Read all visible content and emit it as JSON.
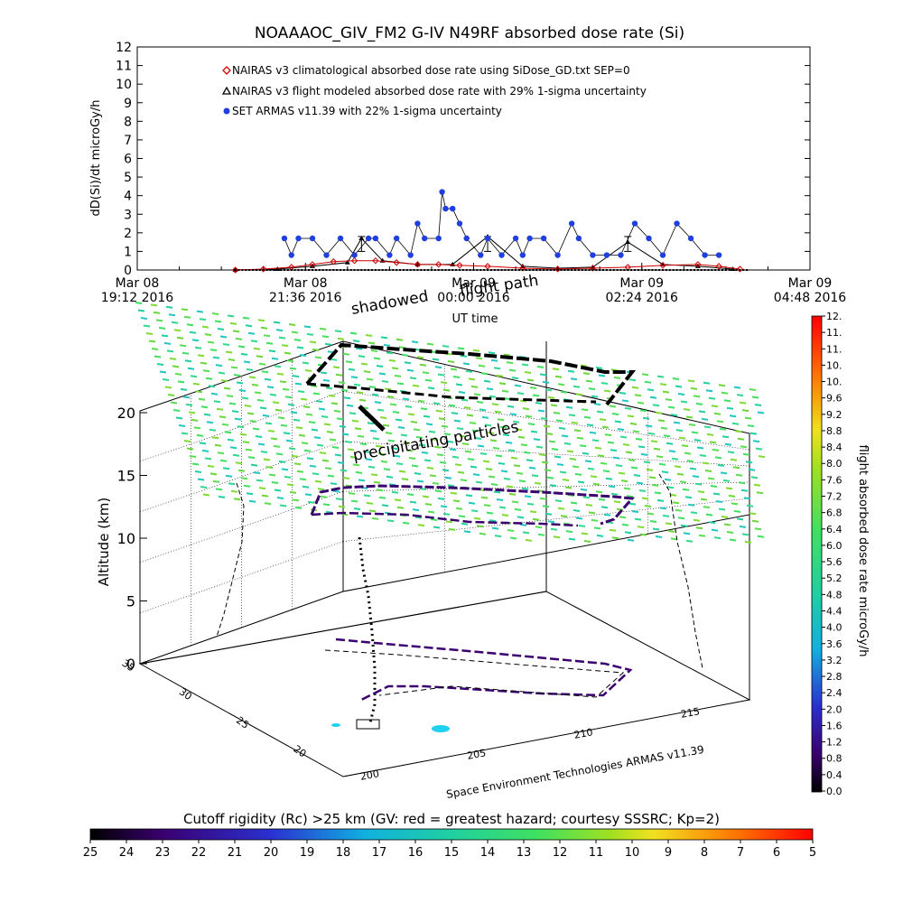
{
  "title": "NOAAAOC_GIV_FM2 G-IV    N49RF  absorbed dose rate (Si)",
  "annotations": {
    "shadowed": "shadowed",
    "flight_path": "flight path",
    "precipitating": "precipitating particles",
    "credit": "Space Environment Technologies ARMAS v11.39"
  },
  "chart_data": [
    {
      "type": "scatter",
      "title": "NOAAAOC_GIV_FM2 G-IV    N49RF  absorbed dose rate (Si)",
      "xlabel": "UT time",
      "ylabel": "dD(Si)/dt microGy/h",
      "ylim": [
        0,
        12
      ],
      "yticks": [
        "0",
        "1",
        "2",
        "3",
        "4",
        "5",
        "6",
        "7",
        "8",
        "9",
        "10",
        "11",
        "12"
      ],
      "xticks": [
        {
          "top": "Mar 08",
          "bottom": "19:12 2016"
        },
        {
          "top": "Mar 08",
          "bottom": "21:36 2016"
        },
        {
          "top": "Mar 09",
          "bottom": "00:00 2016"
        },
        {
          "top": "Mar 09",
          "bottom": "02:24 2016"
        },
        {
          "top": "Mar 09",
          "bottom": "04:48 2016"
        }
      ],
      "xlim_hours": [
        0,
        9.6
      ],
      "legend": [
        {
          "label": "NAIRAS v3 climatological absorbed dose rate using SiDose_GD.txt SEP=0",
          "color": "#cc0000",
          "marker": "diamond"
        },
        {
          "label": "NAIRAS v3 flight modeled absorbed dose rate with 29% 1-sigma uncertainty",
          "color": "#000000",
          "marker": "triangle"
        },
        {
          "label": "SET ARMAS v11.39 with 22% 1-sigma uncertainty",
          "color": "#1f3fe0",
          "marker": "circle"
        }
      ],
      "series": [
        {
          "name": "NAIRAS v3 climatological absorbed dose rate using SiDose_GD.txt SEP=0",
          "x": [
            1.4,
            1.8,
            2.2,
            2.5,
            2.8,
            3.1,
            3.4,
            3.7,
            4.0,
            4.3,
            4.6,
            5.0,
            5.5,
            6.0,
            6.5,
            7.0,
            7.5,
            8.0,
            8.3,
            8.6
          ],
          "y": [
            0.0,
            0.05,
            0.15,
            0.3,
            0.45,
            0.5,
            0.5,
            0.4,
            0.3,
            0.3,
            0.25,
            0.2,
            0.1,
            0.05,
            0.1,
            0.15,
            0.25,
            0.3,
            0.2,
            0.05
          ]
        },
        {
          "name": "NAIRAS v3 flight modeled absorbed dose rate with 29% 1-sigma uncertainty",
          "x": [
            1.4,
            2.0,
            2.5,
            3.0,
            3.2,
            3.5,
            4.0,
            4.5,
            5.0,
            5.5,
            6.0,
            6.5,
            7.0,
            7.5,
            8.0,
            8.5
          ],
          "y": [
            0.0,
            0.05,
            0.2,
            0.4,
            1.7,
            0.5,
            0.3,
            0.3,
            1.8,
            0.2,
            0.1,
            0.15,
            1.5,
            0.3,
            0.2,
            0.05
          ],
          "errorbars_at": [
            3.2,
            5.0,
            7.0
          ]
        },
        {
          "name": "SET ARMAS v11.39 with 22% 1-sigma uncertainty",
          "x": [
            2.1,
            2.2,
            2.3,
            2.5,
            2.7,
            2.9,
            3.1,
            3.3,
            3.4,
            3.6,
            3.7,
            3.9,
            4.0,
            4.1,
            4.3,
            4.35,
            4.4,
            4.5,
            4.6,
            4.7,
            4.9,
            5.0,
            5.2,
            5.4,
            5.5,
            5.6,
            5.8,
            6.0,
            6.2,
            6.3,
            6.5,
            6.7,
            6.9,
            7.1,
            7.3,
            7.5,
            7.7,
            7.9,
            8.1,
            8.3
          ],
          "y": [
            1.7,
            0.8,
            1.7,
            1.7,
            0.8,
            1.7,
            0.8,
            1.7,
            1.7,
            0.8,
            1.7,
            0.8,
            2.5,
            1.7,
            1.7,
            4.2,
            3.3,
            3.3,
            2.5,
            1.7,
            0.8,
            1.7,
            0.8,
            1.7,
            0.8,
            1.7,
            1.7,
            0.8,
            2.5,
            1.7,
            0.8,
            0.8,
            0.8,
            2.5,
            1.7,
            0.8,
            2.5,
            1.7,
            0.8,
            0.8
          ]
        }
      ]
    },
    {
      "type": "scatter",
      "title": "",
      "zlabel": "Altitude (km)",
      "zticks": [
        "0",
        "5",
        "10",
        "15",
        "20"
      ],
      "ylabel_ticks": [
        "20",
        "25",
        "30",
        "35"
      ],
      "xlabel_ticks": [
        "200",
        "205",
        "210",
        "215"
      ],
      "colorbar_right": {
        "label": "flight absorbed dose rate microGy/h",
        "ticks": [
          "0.0",
          "0.4",
          "0.8",
          "1.2",
          "1.6",
          "2.0",
          "2.4",
          "2.8",
          "3.2",
          "3.6",
          "4.0",
          "4.4",
          "4.8",
          "5.2",
          "5.6",
          "6.0",
          "6.4",
          "6.8",
          "7.2",
          "7.6",
          "8.0",
          "8.4",
          "8.8",
          "9.2",
          "9.6",
          "10.",
          "10.",
          "11.",
          "11.",
          "12."
        ]
      },
      "colorbar_bottom": {
        "label": "Cutoff rigidity (Rc) >25 km (GV: red = greatest hazard; courtesy SSSRC; Kp=2)",
        "ticks": [
          "25",
          "24",
          "23",
          "22",
          "21",
          "20",
          "19",
          "18",
          "17",
          "16",
          "15",
          "14",
          "13",
          "12",
          "11",
          "10",
          "9",
          "8",
          "7",
          "6",
          "5"
        ]
      }
    }
  ]
}
